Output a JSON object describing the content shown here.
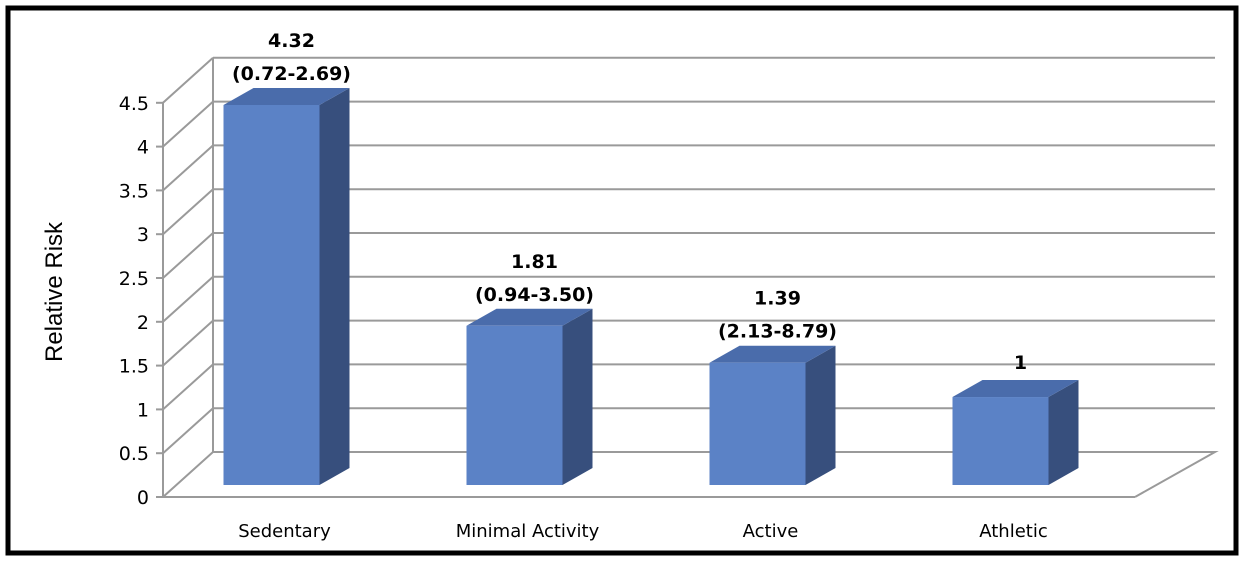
{
  "chart_data": {
    "type": "bar",
    "ylabel": "Relative Risk",
    "ylim": [
      0,
      4.5
    ],
    "yticks": [
      "0",
      "0.5",
      "1",
      "1.5",
      "2",
      "2.5",
      "3",
      "3.5",
      "4",
      "4.5"
    ],
    "grid": true,
    "categories": [
      "Sedentary",
      "Minimal Activity",
      "Active",
      "Athletic"
    ],
    "values": [
      4.32,
      1.81,
      1.39,
      1
    ],
    "labels": [
      {
        "value": "4.32",
        "ci": "(0.72-2.69)"
      },
      {
        "value": "1.81",
        "ci": "(0.94-3.50)"
      },
      {
        "value": "1.39",
        "ci": "(2.13-8.79)"
      },
      {
        "value": "1",
        "ci": ""
      }
    ],
    "colors": {
      "bar_front": "#5b82c6",
      "bar_side": "#374f7d",
      "bar_top": "#4a6cab",
      "grid": "#9a9a9a",
      "frame": "#000000"
    }
  }
}
